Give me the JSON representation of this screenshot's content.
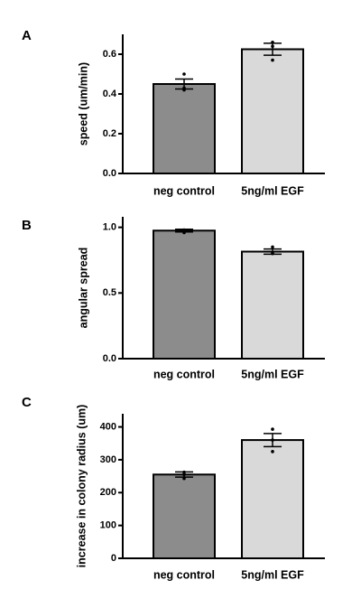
{
  "chart_data": [
    {
      "type": "bar",
      "panel": "A",
      "categories": [
        "neg control",
        "5ng/ml EGF"
      ],
      "values": [
        0.45,
        0.625
      ],
      "error": [
        0.025,
        0.03
      ],
      "points": [
        [
          0.5,
          0.43,
          0.42
        ],
        [
          0.66,
          0.64,
          0.57
        ]
      ],
      "xlabel": "",
      "ylabel": "speed (um/min)",
      "ylim": [
        0,
        0.7
      ],
      "yticks": [
        0.0,
        0.2,
        0.4,
        0.6
      ],
      "ytick_labels": [
        "0.0",
        "0.2",
        "0.4",
        "0.6"
      ],
      "bar_colors": [
        "#8c8c8c",
        "#d9d9d9"
      ],
      "grid": false
    },
    {
      "type": "bar",
      "panel": "B",
      "categories": [
        "neg control",
        "5ng/ml EGF"
      ],
      "values": [
        0.975,
        0.815
      ],
      "error": [
        0.01,
        0.02
      ],
      "points": [
        [
          0.98,
          0.97,
          0.96
        ],
        [
          0.85,
          0.81,
          0.8
        ]
      ],
      "xlabel": "",
      "ylabel": "angular spread",
      "ylim": [
        0,
        1.08
      ],
      "yticks": [
        0.0,
        0.5,
        1.0
      ],
      "ytick_labels": [
        "0.0",
        "0.5",
        "1.0"
      ],
      "bar_colors": [
        "#8c8c8c",
        "#d9d9d9"
      ],
      "grid": false
    },
    {
      "type": "bar",
      "panel": "C",
      "categories": [
        "neg control",
        "5ng/ml EGF"
      ],
      "values": [
        255,
        360
      ],
      "error": [
        8,
        20
      ],
      "points": [
        [
          262,
          255,
          243
        ],
        [
          393,
          360,
          325
        ]
      ],
      "xlabel": "",
      "ylabel": "increase in colony radius (um)",
      "ylim": [
        0,
        440
      ],
      "yticks": [
        0,
        100,
        200,
        300,
        400
      ],
      "ytick_labels": [
        "0",
        "100",
        "200",
        "300",
        "400"
      ],
      "bar_colors": [
        "#8c8c8c",
        "#d9d9d9"
      ],
      "grid": false
    }
  ]
}
